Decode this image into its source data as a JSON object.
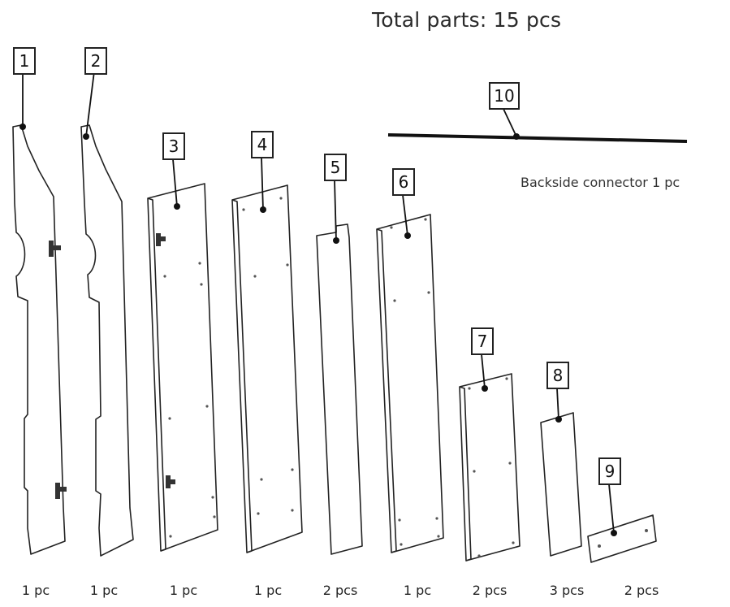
{
  "title": "Total parts: 15 pcs",
  "connector_note": "Backside connector 1 pc",
  "parts": [
    {
      "number": "1",
      "qty": "1 pc"
    },
    {
      "number": "2",
      "qty": "1 pc"
    },
    {
      "number": "3",
      "qty": "1 pc"
    },
    {
      "number": "4",
      "qty": "1 pc"
    },
    {
      "number": "5",
      "qty": "2 pcs"
    },
    {
      "number": "6",
      "qty": "1 pc"
    },
    {
      "number": "7",
      "qty": "2 pcs"
    },
    {
      "number": "8",
      "qty": "3 pcs"
    },
    {
      "number": "9",
      "qty": "2 pcs"
    },
    {
      "number": "10",
      "qty": ""
    }
  ]
}
